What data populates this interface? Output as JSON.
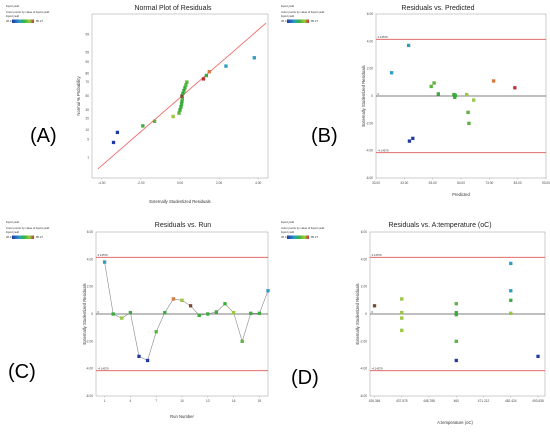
{
  "chart_data": [
    {
      "id": "a",
      "type": "scatter",
      "panel_label": "(A)",
      "title": "Normal Plot of Residuals",
      "xlabel": "Externally Studentized Residuals",
      "ylabel": "Normal % Probability",
      "xlim": [
        -4.5,
        4.5
      ],
      "x_ticks": [
        "-4.00",
        "-2.00",
        "0.00",
        "2.00",
        "4.00"
      ],
      "y_ticks": [
        "1",
        "5",
        "10",
        "20",
        "30",
        "50",
        "70",
        "80",
        "90",
        "95",
        "99"
      ],
      "y_scale": "normal-probability",
      "legend_title": "liquid yield",
      "legend_caption": "Color points by value of liquid yield:",
      "legend_min": "36.3",
      "legend_max": "85.27",
      "fit_line": [
        [
          -4.2,
          0.3
        ],
        [
          4.4,
          99.7
        ]
      ],
      "points": [
        [
          -3.4,
          4.0,
          "#1f3aa8"
        ],
        [
          -3.2,
          8.5,
          "#1f3aa8"
        ],
        [
          -1.9,
          13.0,
          "#36b23a"
        ],
        [
          -1.3,
          17.0,
          "#58b83a"
        ],
        [
          -0.35,
          22.0,
          "#9ccc3a"
        ],
        [
          -0.05,
          26.0,
          "#58b83a"
        ],
        [
          0.0,
          30.0,
          "#36b23a"
        ],
        [
          0.05,
          34.0,
          "#36b23a"
        ],
        [
          0.08,
          38.0,
          "#36b23a"
        ],
        [
          0.1,
          42.0,
          "#36b23a"
        ],
        [
          0.12,
          46.0,
          "#58b83a"
        ],
        [
          0.1,
          50.0,
          "#7a4a2a"
        ],
        [
          0.15,
          54.0,
          "#36b23a"
        ],
        [
          0.2,
          58.0,
          "#36b23a"
        ],
        [
          0.25,
          62.0,
          "#36b23a"
        ],
        [
          0.3,
          66.0,
          "#58b83a"
        ],
        [
          0.35,
          70.0,
          "#58b83a"
        ],
        [
          1.2,
          74.0,
          "#c03030"
        ],
        [
          1.35,
          78.0,
          "#36b23a"
        ],
        [
          1.5,
          82.0,
          "#e07a3a"
        ],
        [
          2.35,
          87.0,
          "#2aa0c8"
        ],
        [
          3.8,
          92.5,
          "#2aa0c8"
        ]
      ]
    },
    {
      "id": "b",
      "type": "scatter",
      "panel_label": "(B)",
      "title": "Residuals vs. Predicted",
      "xlabel": "Predicted",
      "ylabel": "Externally Studentized Residuals",
      "xlim": [
        30,
        90
      ],
      "ylim": [
        -6,
        6
      ],
      "x_ticks": [
        "33.00",
        "43.00",
        "53.00",
        "63.00",
        "73.00",
        "83.00",
        "93.00"
      ],
      "y_ticks": [
        "-6.00",
        "-4.00",
        "-2.00",
        "0",
        "2.00",
        "4.00",
        "6.00"
      ],
      "upper_limit_label": "4.14579",
      "lower_limit_label": "-4.14579",
      "upper_limit": 4.14579,
      "lower_limit": -4.14579,
      "zero_label": "0",
      "legend_title": "liquid yield",
      "legend_caption": "Color points by value of liquid yield:",
      "legend_min": "36.3",
      "legend_max": "85.27",
      "points": [
        [
          35.5,
          1.7,
          "#2aa0c8"
        ],
        [
          41.5,
          3.7,
          "#2aa0c8"
        ],
        [
          41.8,
          -3.3,
          "#1f3aa8"
        ],
        [
          43.0,
          -3.1,
          "#1f3aa8"
        ],
        [
          49.5,
          0.7,
          "#58b83a"
        ],
        [
          50.5,
          0.95,
          "#58b83a"
        ],
        [
          52.0,
          0.15,
          "#36b23a"
        ],
        [
          57.5,
          0.1,
          "#36b23a"
        ],
        [
          57.8,
          -0.1,
          "#36b23a"
        ],
        [
          58.0,
          0.05,
          "#36b23a"
        ],
        [
          62.0,
          0.1,
          "#9ccc3a"
        ],
        [
          62.5,
          -1.2,
          "#58b83a"
        ],
        [
          62.8,
          -2.0,
          "#58b83a"
        ],
        [
          64.5,
          -0.3,
          "#9ccc3a"
        ],
        [
          71.5,
          1.1,
          "#e07a3a"
        ],
        [
          79.0,
          0.6,
          "#c03030"
        ]
      ]
    },
    {
      "id": "c",
      "type": "line",
      "panel_label": "(C)",
      "title": "Residuals vs. Run",
      "xlabel": "Run Number",
      "ylabel": "Externally Studentized Residuals",
      "xlim": [
        0,
        20
      ],
      "ylim": [
        -6,
        6
      ],
      "x_ticks": [
        "1",
        "4",
        "7",
        "10",
        "13",
        "16",
        "19"
      ],
      "y_ticks": [
        "-6.00",
        "-4.00",
        "-2.00",
        "0",
        "2.00",
        "4.00",
        "6.00"
      ],
      "upper_limit_label": "4.14579",
      "lower_limit_label": "-4.14579",
      "upper_limit": 4.14579,
      "lower_limit": -4.14579,
      "zero_label": "0",
      "legend_title": "liquid yield",
      "legend_caption": "Color points by value of liquid yield:",
      "legend_min": "36.3",
      "legend_max": "85.27",
      "points": [
        [
          1,
          3.8,
          "#2aa0c8"
        ],
        [
          2,
          0.0,
          "#36b23a"
        ],
        [
          3,
          -0.3,
          "#9ccc3a"
        ],
        [
          4,
          0.1,
          "#36b23a"
        ],
        [
          5,
          -3.1,
          "#1f3aa8"
        ],
        [
          6,
          -3.4,
          "#1f3aa8"
        ],
        [
          7,
          -1.3,
          "#58b83a"
        ],
        [
          8,
          0.1,
          "#36b23a"
        ],
        [
          9,
          1.1,
          "#e07a3a"
        ],
        [
          10,
          1.0,
          "#9ccc3a"
        ],
        [
          11,
          0.6,
          "#7a4a2a"
        ],
        [
          12,
          -0.1,
          "#36b23a"
        ],
        [
          13,
          0.0,
          "#36b23a"
        ],
        [
          14,
          0.15,
          "#36b23a"
        ],
        [
          15,
          0.75,
          "#36b23a"
        ],
        [
          16,
          0.1,
          "#9ccc3a"
        ],
        [
          17,
          -2.0,
          "#58b83a"
        ],
        [
          18,
          0.05,
          "#36b23a"
        ],
        [
          19,
          0.05,
          "#36b23a"
        ],
        [
          20,
          1.7,
          "#2aa0c8"
        ]
      ]
    },
    {
      "id": "d",
      "type": "scatter",
      "panel_label": "(D)",
      "title": "Residuals vs. A:temperature (oC)",
      "xlabel": "A:temperature (oC)",
      "ylabel": "Externally Studentized Residuals",
      "xlim": [
        424.5,
        496.5
      ],
      "ylim": [
        -6,
        6
      ],
      "x_tick_values": [
        426.364,
        437.575,
        448.788,
        460,
        471.212,
        482.424,
        493.635
      ],
      "x_ticks": [
        "426.364",
        "437.575",
        "448.788",
        "460",
        "471.212",
        "482.424",
        "493.635"
      ],
      "y_ticks": [
        "-6.00",
        "-4.00",
        "-2.00",
        "0",
        "2.00",
        "4.00",
        "6.00"
      ],
      "upper_limit_label": "4.14579",
      "lower_limit_label": "-4.14579",
      "upper_limit": 4.14579,
      "lower_limit": -4.14579,
      "zero_label": "0",
      "legend_title": "liquid yield",
      "legend_caption": "Color points by value of liquid yield:",
      "legend_min": "36.3",
      "legend_max": "85.27",
      "points": [
        [
          426.364,
          0.6,
          "#7a4a2a"
        ],
        [
          437.575,
          1.1,
          "#9ccc3a"
        ],
        [
          437.575,
          0.1,
          "#9ccc3a"
        ],
        [
          437.575,
          -0.3,
          "#9ccc3a"
        ],
        [
          437.575,
          -1.2,
          "#9ccc3a"
        ],
        [
          460,
          0.75,
          "#58b83a"
        ],
        [
          460,
          0.1,
          "#36b23a"
        ],
        [
          460,
          -0.05,
          "#36b23a"
        ],
        [
          460,
          -2.0,
          "#58b83a"
        ],
        [
          460,
          -3.4,
          "#1f3aa8"
        ],
        [
          482.424,
          3.7,
          "#2aa0c8"
        ],
        [
          482.424,
          1.7,
          "#2aa0c8"
        ],
        [
          482.424,
          1.0,
          "#36b23a"
        ],
        [
          482.424,
          0.05,
          "#9ccc3a"
        ],
        [
          493.635,
          -3.1,
          "#1f3aa8"
        ]
      ]
    }
  ]
}
